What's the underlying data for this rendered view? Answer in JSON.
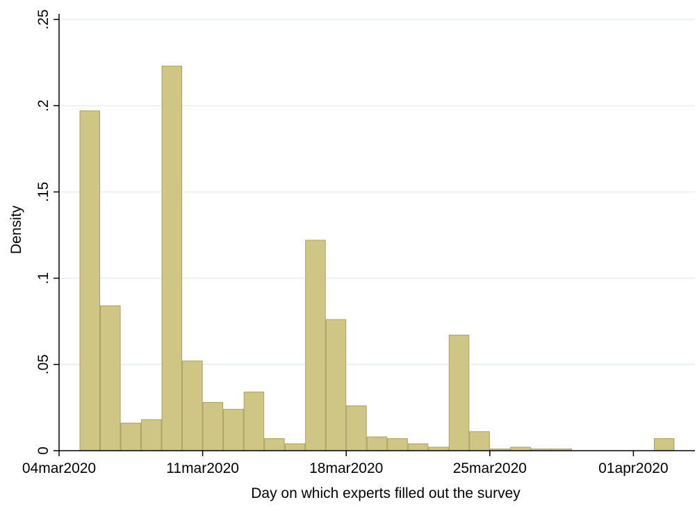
{
  "chart_data": {
    "type": "bar",
    "title": "",
    "xlabel": "Day on which experts filled out the survey",
    "ylabel": "Density",
    "ylim": [
      0,
      0.25
    ],
    "yticks": [
      {
        "value": 0,
        "label": "0"
      },
      {
        "value": 0.05,
        "label": ".05"
      },
      {
        "value": 0.1,
        "label": ".1"
      },
      {
        "value": 0.15,
        "label": ".15"
      },
      {
        "value": 0.2,
        "label": ".2"
      },
      {
        "value": 0.25,
        "label": ".25"
      }
    ],
    "xlim": [
      "2020-03-04",
      "2020-04-04"
    ],
    "xticks": [
      {
        "date": "2020-03-04",
        "label": "04mar2020"
      },
      {
        "date": "2020-03-11",
        "label": "11mar2020"
      },
      {
        "date": "2020-03-18",
        "label": "18mar2020"
      },
      {
        "date": "2020-03-25",
        "label": "25mar2020"
      },
      {
        "date": "2020-04-01",
        "label": "01apr2020"
      }
    ],
    "grid": true,
    "bar_color": "#cfc585",
    "bar_edge_color": "#a9a062",
    "bars": [
      {
        "start": "2020-03-05",
        "value": 0.197
      },
      {
        "start": "2020-03-06",
        "value": 0.084
      },
      {
        "start": "2020-03-07",
        "value": 0.016
      },
      {
        "start": "2020-03-08",
        "value": 0.018
      },
      {
        "start": "2020-03-09",
        "value": 0.223
      },
      {
        "start": "2020-03-10",
        "value": 0.052
      },
      {
        "start": "2020-03-11",
        "value": 0.028
      },
      {
        "start": "2020-03-12",
        "value": 0.024
      },
      {
        "start": "2020-03-13",
        "value": 0.034
      },
      {
        "start": "2020-03-14",
        "value": 0.007
      },
      {
        "start": "2020-03-15",
        "value": 0.004
      },
      {
        "start": "2020-03-16",
        "value": 0.122
      },
      {
        "start": "2020-03-17",
        "value": 0.076
      },
      {
        "start": "2020-03-18",
        "value": 0.026
      },
      {
        "start": "2020-03-19",
        "value": 0.008
      },
      {
        "start": "2020-03-20",
        "value": 0.007
      },
      {
        "start": "2020-03-21",
        "value": 0.004
      },
      {
        "start": "2020-03-22",
        "value": 0.002
      },
      {
        "start": "2020-03-23",
        "value": 0.067
      },
      {
        "start": "2020-03-24",
        "value": 0.011
      },
      {
        "start": "2020-03-25",
        "value": 0.001
      },
      {
        "start": "2020-03-26",
        "value": 0.002
      },
      {
        "start": "2020-03-27",
        "value": 0.001
      },
      {
        "start": "2020-03-28",
        "value": 0.001
      },
      {
        "start": "2020-04-02",
        "value": 0.007
      }
    ]
  }
}
